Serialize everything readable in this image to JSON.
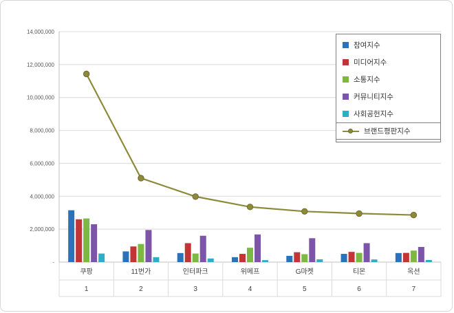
{
  "chart_data": {
    "type": "bar+line",
    "title": "",
    "categories": [
      "쿠팡",
      "11번가",
      "인터파크",
      "위메프",
      "G마켓",
      "티몬",
      "옥션"
    ],
    "ranks": [
      "1",
      "2",
      "3",
      "4",
      "5",
      "6",
      "7"
    ],
    "y_axis": {
      "min": 0,
      "max": 14000000,
      "step": 2000000,
      "zero_label": "-"
    },
    "grid": true,
    "legend_position": "top-right",
    "series": [
      {
        "name": "참여지수",
        "type": "bar",
        "color": "#2C72B8",
        "values": [
          3150000,
          650000,
          550000,
          300000,
          380000,
          500000,
          550000
        ]
      },
      {
        "name": "미디어지수",
        "type": "bar",
        "color": "#C23536",
        "values": [
          2600000,
          950000,
          1150000,
          500000,
          600000,
          620000,
          560000
        ]
      },
      {
        "name": "소통지수",
        "type": "bar",
        "color": "#7DB843",
        "values": [
          2650000,
          1100000,
          520000,
          870000,
          480000,
          560000,
          700000
        ]
      },
      {
        "name": "커뮤니티지수",
        "type": "bar",
        "color": "#7D55A8",
        "values": [
          2300000,
          1950000,
          1600000,
          1680000,
          1450000,
          1150000,
          920000
        ]
      },
      {
        "name": "사회공헌지수",
        "type": "bar",
        "color": "#2FADC5",
        "values": [
          520000,
          300000,
          220000,
          120000,
          170000,
          160000,
          130000
        ]
      },
      {
        "name": "브랜드평판지수",
        "type": "line",
        "color": "#8D8A3B",
        "marker_edge": "#6E6A2C",
        "values": [
          11430000,
          5100000,
          3980000,
          3350000,
          3080000,
          2950000,
          2860000
        ]
      }
    ]
  }
}
